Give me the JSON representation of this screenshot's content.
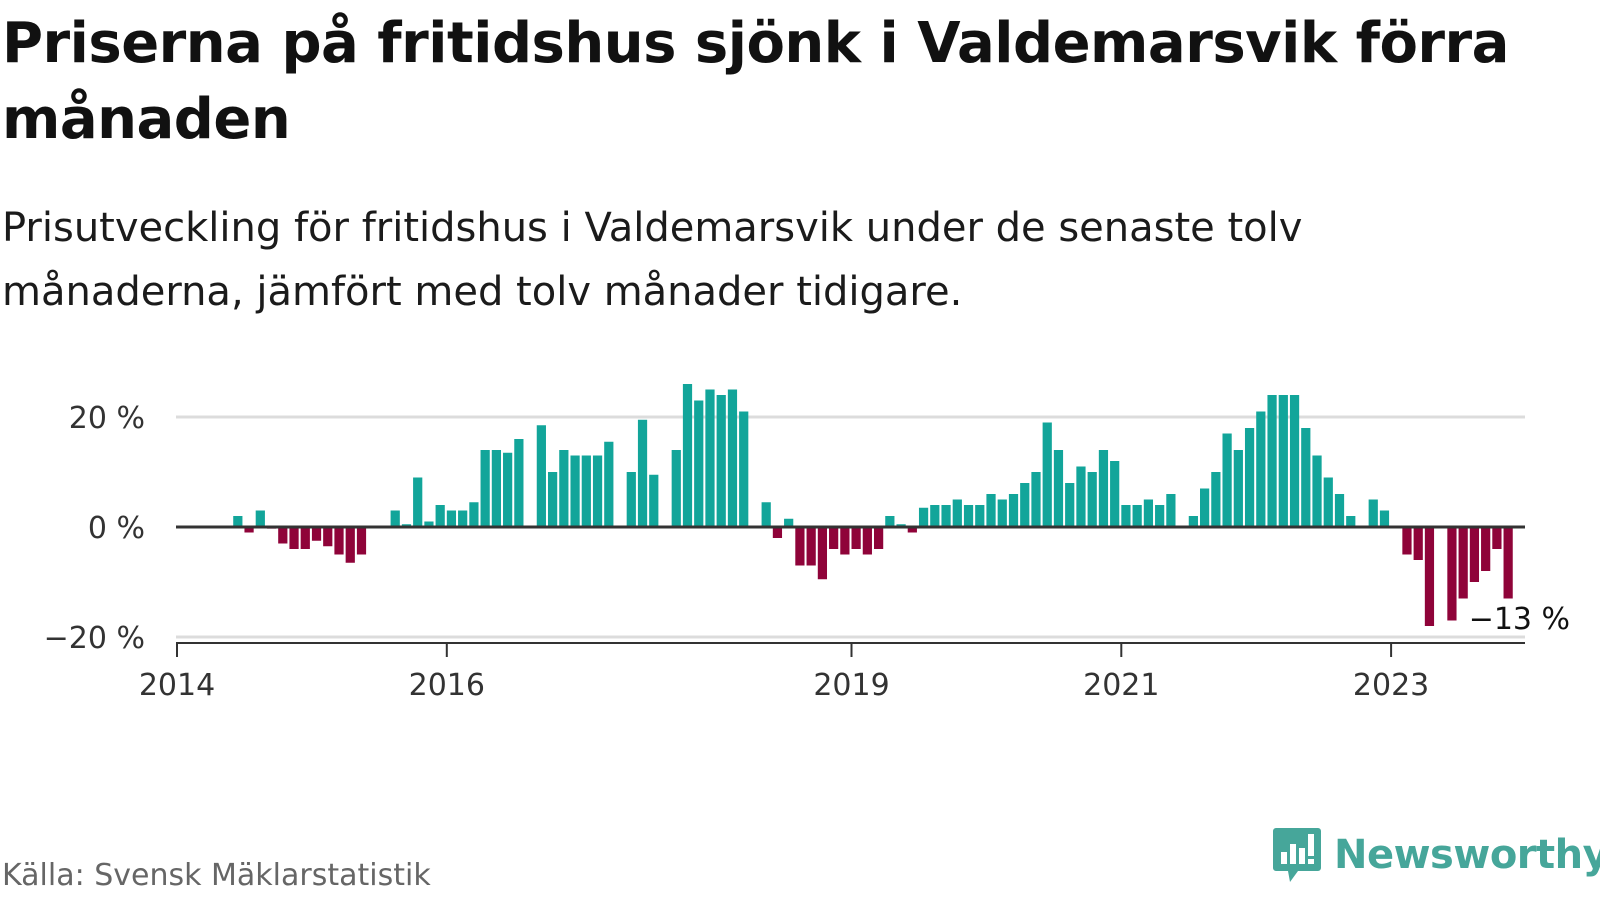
{
  "header": {
    "title": "Priserna på fritidshus sjönk i Valdemarsvik förra månaden",
    "subtitle": "Prisutveckling för fritidshus i Valdemarsvik under de senaste tolv månaderna, jämfört med tolv månader tidigare."
  },
  "footer": {
    "source": "Källa: Svensk Mäklarstatistik",
    "brand": "Newsworthy"
  },
  "colors": {
    "positive": "#12a59a",
    "negative": "#8f0339",
    "brand": "#46a69a"
  },
  "chart_data": {
    "type": "bar",
    "title": "Priserna på fritidshus sjönk i Valdemarsvik förra månaden",
    "subtitle": "Prisutveckling för fritidshus i Valdemarsvik under de senaste tolv månaderna, jämfört med tolv månader tidigare.",
    "xlabel": "",
    "ylabel": "",
    "ylim": [
      -20,
      27
    ],
    "yticks": [
      -20,
      0,
      20
    ],
    "ytick_labels": [
      "−20 %",
      "0 %",
      "20 %"
    ],
    "xticks": [
      "2014-01",
      "2016-01",
      "2019-01",
      "2021-01",
      "2023-01"
    ],
    "xtick_labels": [
      "2014",
      "2016",
      "2019",
      "2021",
      "2023"
    ],
    "grid": true,
    "annotation": {
      "x": "2023-12",
      "label": "−13 %"
    },
    "x": [
      "2014-01",
      "2014-02",
      "2014-03",
      "2014-04",
      "2014-05",
      "2014-06",
      "2014-07",
      "2014-08",
      "2014-09",
      "2014-10",
      "2014-11",
      "2014-12",
      "2015-01",
      "2015-02",
      "2015-03",
      "2015-04",
      "2015-05",
      "2015-06",
      "2015-07",
      "2015-08",
      "2015-09",
      "2015-10",
      "2015-11",
      "2015-12",
      "2016-01",
      "2016-02",
      "2016-03",
      "2016-04",
      "2016-05",
      "2016-06",
      "2016-07",
      "2016-08",
      "2016-09",
      "2016-10",
      "2016-11",
      "2016-12",
      "2017-01",
      "2017-02",
      "2017-03",
      "2017-04",
      "2017-05",
      "2017-06",
      "2017-07",
      "2017-08",
      "2017-09",
      "2017-10",
      "2017-11",
      "2017-12",
      "2018-01",
      "2018-02",
      "2018-03",
      "2018-04",
      "2018-05",
      "2018-06",
      "2018-07",
      "2018-08",
      "2018-09",
      "2018-10",
      "2018-11",
      "2018-12",
      "2019-01",
      "2019-02",
      "2019-03",
      "2019-04",
      "2019-05",
      "2019-06",
      "2019-07",
      "2019-08",
      "2019-09",
      "2019-10",
      "2019-11",
      "2019-12",
      "2020-01",
      "2020-02",
      "2020-03",
      "2020-04",
      "2020-05",
      "2020-06",
      "2020-07",
      "2020-08",
      "2020-09",
      "2020-10",
      "2020-11",
      "2020-12",
      "2021-01",
      "2021-02",
      "2021-03",
      "2021-04",
      "2021-05",
      "2021-06",
      "2021-07",
      "2021-08",
      "2021-09",
      "2021-10",
      "2021-11",
      "2021-12",
      "2022-01",
      "2022-02",
      "2022-03",
      "2022-04",
      "2022-05",
      "2022-06",
      "2022-07",
      "2022-08",
      "2022-09",
      "2022-10",
      "2022-11",
      "2022-12",
      "2023-01",
      "2023-02",
      "2023-03",
      "2023-04",
      "2023-05",
      "2023-06",
      "2023-07",
      "2023-08",
      "2023-09",
      "2023-10",
      "2023-11",
      "2023-12"
    ],
    "values": [
      null,
      null,
      null,
      null,
      null,
      2,
      -1,
      3,
      -0.3,
      -3,
      -4,
      -4,
      -2.5,
      -3.5,
      -5,
      -6.5,
      -5,
      null,
      0,
      3,
      0.5,
      9,
      1,
      4,
      3,
      3,
      4.5,
      14,
      14,
      13.5,
      16,
      null,
      18.5,
      10,
      14,
      13,
      13,
      13,
      15.5,
      null,
      10,
      19.5,
      9.5,
      null,
      14,
      26,
      23,
      25,
      24,
      25,
      21,
      null,
      4.5,
      -2,
      1.5,
      -7,
      -7,
      -9.5,
      -4,
      -5,
      -4,
      -5,
      -4,
      2,
      0.5,
      -1,
      3.5,
      4,
      4,
      5,
      4,
      4,
      6,
      5,
      6,
      8,
      10,
      19,
      14,
      8,
      11,
      10,
      14,
      12,
      4,
      4,
      5,
      4,
      6,
      null,
      2,
      7,
      10,
      17,
      14,
      18,
      21,
      24,
      24,
      24,
      18,
      13,
      9,
      6,
      2,
      null,
      5,
      3,
      null,
      -5,
      -6,
      -18,
      null,
      -17,
      -13,
      -10,
      -8,
      -4,
      -13,
      null
    ]
  }
}
